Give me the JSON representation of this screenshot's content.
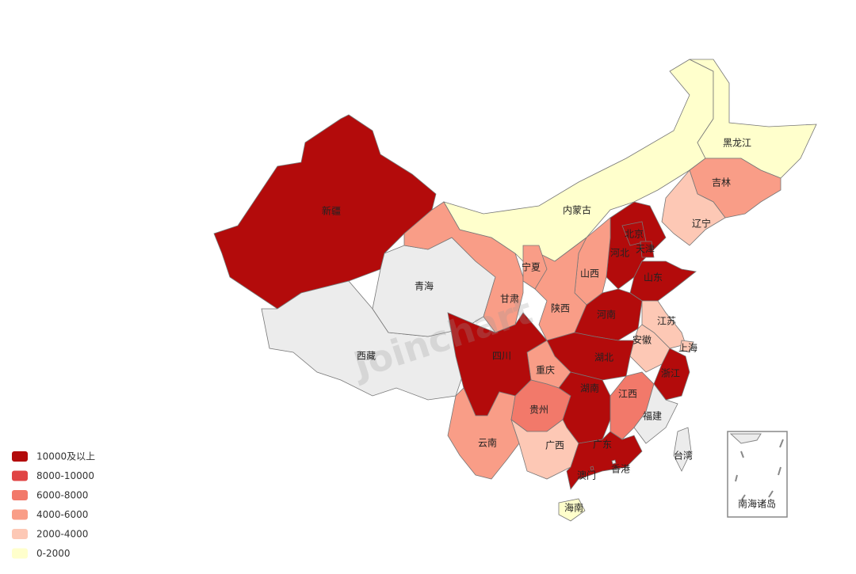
{
  "map": {
    "regions": [
      {
        "name": "新疆",
        "color": "#b30b0b"
      },
      {
        "name": "西藏",
        "color": "#ececec"
      },
      {
        "name": "青海",
        "color": "#ececec"
      },
      {
        "name": "甘肃",
        "color": "#f99d87"
      },
      {
        "name": "内蒙古",
        "color": "#ffffcc"
      },
      {
        "name": "黑龙江",
        "color": "#ffffcc"
      },
      {
        "name": "吉林",
        "color": "#f99d87"
      },
      {
        "name": "辽宁",
        "color": "#fdc8b5"
      },
      {
        "name": "河北",
        "color": "#b30b0b"
      },
      {
        "name": "北京",
        "color": "#b30b0b"
      },
      {
        "name": "天津",
        "color": "#b30b0b"
      },
      {
        "name": "山西",
        "color": "#f99d87"
      },
      {
        "name": "陕西",
        "color": "#f99d87"
      },
      {
        "name": "宁夏",
        "color": "#f99d87"
      },
      {
        "name": "山东",
        "color": "#b30b0b"
      },
      {
        "name": "河南",
        "color": "#b30b0b"
      },
      {
        "name": "江苏",
        "color": "#fdc8b5"
      },
      {
        "name": "上海",
        "color": "#fdc8b5"
      },
      {
        "name": "安徽",
        "color": "#fdc8b5"
      },
      {
        "name": "浙江",
        "color": "#b30b0b"
      },
      {
        "name": "湖北",
        "color": "#b30b0b"
      },
      {
        "name": "重庆",
        "color": "#f99d87"
      },
      {
        "name": "四川",
        "color": "#b30b0b"
      },
      {
        "name": "贵州",
        "color": "#f2796a"
      },
      {
        "name": "湖南",
        "color": "#b30b0b"
      },
      {
        "name": "江西",
        "color": "#f2796a"
      },
      {
        "name": "福建",
        "color": "#ececec"
      },
      {
        "name": "云南",
        "color": "#f99d87"
      },
      {
        "name": "广西",
        "color": "#fdc8b5"
      },
      {
        "name": "广东",
        "color": "#b30b0b"
      },
      {
        "name": "海南",
        "color": "#ffffcc"
      },
      {
        "name": "台湾",
        "color": "#ececec"
      },
      {
        "name": "香港",
        "color": "#ececec"
      },
      {
        "name": "澳门",
        "color": "#b30b0b"
      }
    ],
    "inset_label": "南海诸岛",
    "watermark": "Joinchart",
    "legend": [
      {
        "label": "10000及以上",
        "color": "#b30b0b"
      },
      {
        "label": "8000-10000",
        "color": "#e04545"
      },
      {
        "label": "6000-8000",
        "color": "#f2796a"
      },
      {
        "label": "4000-6000",
        "color": "#f99d87"
      },
      {
        "label": "2000-4000",
        "color": "#fdc8b5"
      },
      {
        "label": "0-2000",
        "color": "#ffffcc"
      }
    ]
  }
}
